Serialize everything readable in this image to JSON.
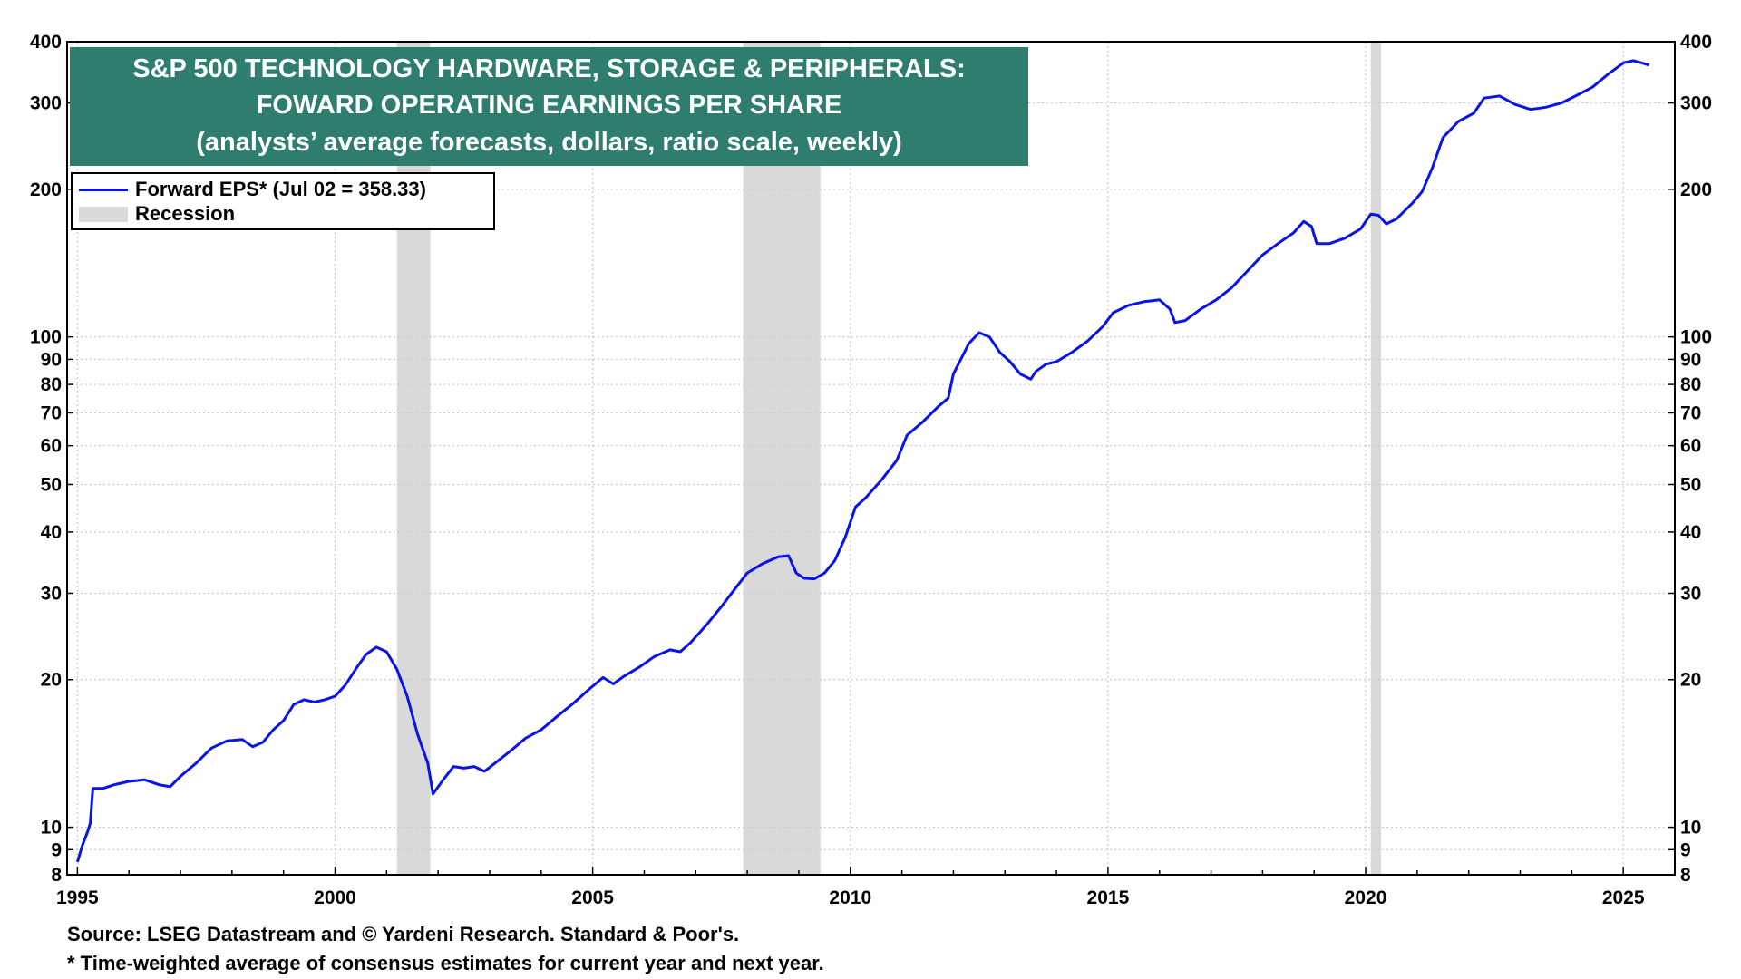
{
  "chart_data": {
    "type": "line",
    "title": "S&P 500 TECHNOLOGY HARDWARE, STORAGE & PERIPHERALS:",
    "title_line2": "FOWARD OPERATING EARNINGS PER SHARE",
    "subtitle": "(analysts’ average forecasts, dollars, ratio scale, weekly)",
    "xlabel": "",
    "ylabel": "",
    "y_scale": "log",
    "ylim": [
      8,
      400
    ],
    "xlim": [
      1994.8,
      2026.0
    ],
    "grid": true,
    "legend_position": "top-left",
    "x_ticks": [
      "1995",
      "2000",
      "2005",
      "2010",
      "2015",
      "2020",
      "2025"
    ],
    "y_ticks": [
      "8",
      "9",
      "10",
      "20",
      "30",
      "40",
      "50",
      "60",
      "70",
      "80",
      "90",
      "100",
      "200",
      "300",
      "400"
    ],
    "y_tick_values": [
      8,
      9,
      10,
      20,
      30,
      40,
      50,
      60,
      70,
      80,
      90,
      100,
      200,
      300,
      400
    ],
    "recessions": [
      [
        2001.2,
        2001.85
      ],
      [
        2007.92,
        2009.42
      ],
      [
        2020.1,
        2020.3
      ]
    ],
    "series": [
      {
        "name": "Forward EPS* (Jul 02 = 358.33)",
        "color": "#0a14e6",
        "points": [
          [
            1995.0,
            8.5
          ],
          [
            1995.1,
            9.2
          ],
          [
            1995.2,
            9.8
          ],
          [
            1995.25,
            10.2
          ],
          [
            1995.3,
            12.0
          ],
          [
            1995.5,
            12.0
          ],
          [
            1995.7,
            12.2
          ],
          [
            1996.0,
            12.4
          ],
          [
            1996.3,
            12.5
          ],
          [
            1996.6,
            12.2
          ],
          [
            1996.8,
            12.1
          ],
          [
            1997.0,
            12.7
          ],
          [
            1997.3,
            13.5
          ],
          [
            1997.6,
            14.5
          ],
          [
            1997.9,
            15.0
          ],
          [
            1998.2,
            15.1
          ],
          [
            1998.4,
            14.6
          ],
          [
            1998.6,
            14.9
          ],
          [
            1998.8,
            15.8
          ],
          [
            1999.0,
            16.5
          ],
          [
            1999.2,
            17.8
          ],
          [
            1999.4,
            18.2
          ],
          [
            1999.6,
            18.0
          ],
          [
            1999.8,
            18.2
          ],
          [
            2000.0,
            18.5
          ],
          [
            2000.2,
            19.5
          ],
          [
            2000.4,
            21.0
          ],
          [
            2000.6,
            22.5
          ],
          [
            2000.8,
            23.3
          ],
          [
            2001.0,
            22.8
          ],
          [
            2001.2,
            21.0
          ],
          [
            2001.4,
            18.5
          ],
          [
            2001.6,
            15.5
          ],
          [
            2001.8,
            13.5
          ],
          [
            2001.9,
            11.7
          ],
          [
            2002.1,
            12.5
          ],
          [
            2002.3,
            13.3
          ],
          [
            2002.5,
            13.2
          ],
          [
            2002.7,
            13.3
          ],
          [
            2002.9,
            13.0
          ],
          [
            2003.1,
            13.5
          ],
          [
            2003.4,
            14.3
          ],
          [
            2003.7,
            15.2
          ],
          [
            2004.0,
            15.8
          ],
          [
            2004.3,
            16.8
          ],
          [
            2004.6,
            17.8
          ],
          [
            2004.9,
            19.0
          ],
          [
            2005.2,
            20.2
          ],
          [
            2005.4,
            19.6
          ],
          [
            2005.6,
            20.3
          ],
          [
            2005.9,
            21.2
          ],
          [
            2006.2,
            22.3
          ],
          [
            2006.5,
            23.0
          ],
          [
            2006.7,
            22.8
          ],
          [
            2006.9,
            23.8
          ],
          [
            2007.2,
            25.8
          ],
          [
            2007.5,
            28.2
          ],
          [
            2007.8,
            31.0
          ],
          [
            2008.0,
            33.0
          ],
          [
            2008.3,
            34.5
          ],
          [
            2008.6,
            35.6
          ],
          [
            2008.8,
            35.8
          ],
          [
            2008.95,
            33.0
          ],
          [
            2009.1,
            32.2
          ],
          [
            2009.3,
            32.1
          ],
          [
            2009.5,
            33.0
          ],
          [
            2009.7,
            35.0
          ],
          [
            2009.9,
            39.0
          ],
          [
            2010.1,
            45.0
          ],
          [
            2010.3,
            47.0
          ],
          [
            2010.6,
            51.0
          ],
          [
            2010.9,
            56.0
          ],
          [
            2011.1,
            63.0
          ],
          [
            2011.4,
            67.0
          ],
          [
            2011.7,
            72.0
          ],
          [
            2011.9,
            75.0
          ],
          [
            2012.0,
            84.0
          ],
          [
            2012.3,
            97.0
          ],
          [
            2012.5,
            102.0
          ],
          [
            2012.7,
            100.0
          ],
          [
            2012.9,
            93.0
          ],
          [
            2013.1,
            89.0
          ],
          [
            2013.3,
            84.0
          ],
          [
            2013.5,
            82.0
          ],
          [
            2013.6,
            85.0
          ],
          [
            2013.8,
            88.0
          ],
          [
            2014.0,
            89.0
          ],
          [
            2014.3,
            93.0
          ],
          [
            2014.6,
            98.0
          ],
          [
            2014.9,
            105.0
          ],
          [
            2015.1,
            112.0
          ],
          [
            2015.4,
            116.0
          ],
          [
            2015.7,
            118.0
          ],
          [
            2016.0,
            119.0
          ],
          [
            2016.2,
            114.0
          ],
          [
            2016.3,
            107.0
          ],
          [
            2016.5,
            108.0
          ],
          [
            2016.8,
            114.0
          ],
          [
            2017.1,
            119.0
          ],
          [
            2017.4,
            126.0
          ],
          [
            2017.7,
            136.0
          ],
          [
            2018.0,
            147.0
          ],
          [
            2018.3,
            155.0
          ],
          [
            2018.6,
            163.0
          ],
          [
            2018.8,
            172.0
          ],
          [
            2018.95,
            168.0
          ],
          [
            2019.05,
            155.0
          ],
          [
            2019.3,
            155.0
          ],
          [
            2019.6,
            159.0
          ],
          [
            2019.9,
            166.0
          ],
          [
            2020.1,
            178.0
          ],
          [
            2020.25,
            177.0
          ],
          [
            2020.4,
            170.0
          ],
          [
            2020.6,
            174.0
          ],
          [
            2020.9,
            187.0
          ],
          [
            2021.1,
            198.0
          ],
          [
            2021.3,
            222.0
          ],
          [
            2021.5,
            255.0
          ],
          [
            2021.8,
            275.0
          ],
          [
            2022.1,
            286.0
          ],
          [
            2022.3,
            307.0
          ],
          [
            2022.6,
            310.0
          ],
          [
            2022.9,
            298.0
          ],
          [
            2023.2,
            291.0
          ],
          [
            2023.5,
            294.0
          ],
          [
            2023.8,
            300.0
          ],
          [
            2024.1,
            311.0
          ],
          [
            2024.4,
            323.0
          ],
          [
            2024.7,
            343.0
          ],
          [
            2025.0,
            362.0
          ],
          [
            2025.2,
            366.0
          ],
          [
            2025.4,
            361.0
          ],
          [
            2025.5,
            358.33
          ]
        ]
      },
      {
        "name": "Recession",
        "color": "#d9d9d9"
      }
    ]
  },
  "footer": {
    "source": "Source: LSEG Datastream and © Yardeni Research. Standard & Poor's.",
    "note": "* Time-weighted average of consensus estimates for current year and next year."
  }
}
